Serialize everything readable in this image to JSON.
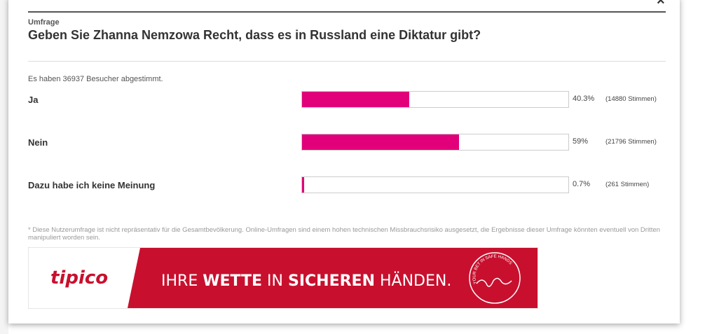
{
  "header": {
    "close": "×",
    "kicker": "Umfrage",
    "title": "Geben Sie Zhanna Nemzowa Recht, dass es in Russland eine Diktatur gibt?"
  },
  "poll": {
    "summary": "Es haben 36937 Besucher abgestimmt.",
    "xlim": [
      0,
      100
    ],
    "color": "#e2007a",
    "options": [
      {
        "label": "Ja",
        "value": 40.3,
        "value_label": "40.3%",
        "votes": "(14880 Stimmen)"
      },
      {
        "label": "Nein",
        "value": 59,
        "value_label": "59%",
        "votes": "(21796 Stimmen)"
      },
      {
        "label": "Dazu habe ich keine Meinung",
        "value": 0.7,
        "value_label": "0.7%",
        "votes": "(261 Stimmen)"
      }
    ]
  },
  "footnote": "* Diese Nutzerumfrage ist nicht repräsentativ für die Gesamtbevölkerung. Online-Umfragen sind einem hohen technischen Missbrauchsrisiko ausgesetzt, die Ergebnisse dieser Umfrage könnten eventuell von Dritten manipuliert worden sein.",
  "ad": {
    "logo": "tipico",
    "slogan": [
      "IHRE ",
      "WETTE",
      " IN ",
      "SICHEREN",
      " HÄNDEN."
    ],
    "emblem": "YOUR BET IN SAFE HANDS"
  }
}
